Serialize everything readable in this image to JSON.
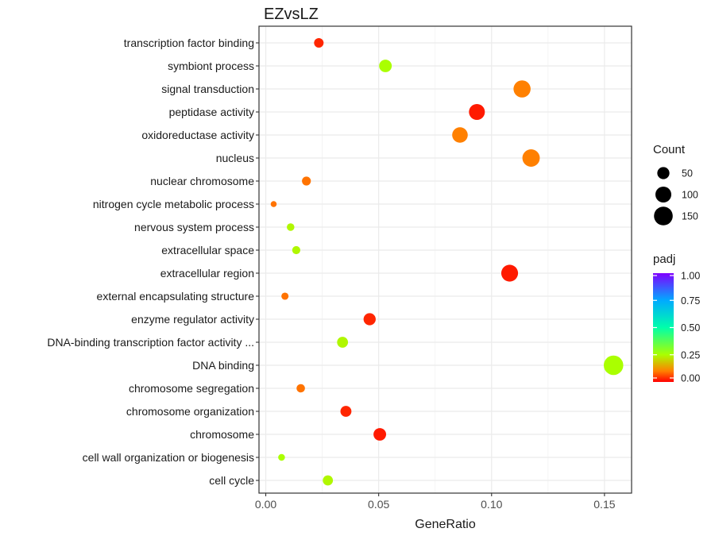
{
  "chart_data": {
    "type": "scatter",
    "title": "EZvsLZ",
    "xlabel": "GeneRatio",
    "ylabel": "",
    "xlim": [
      -0.003,
      0.162
    ],
    "xticks": [
      0,
      0.05,
      0.1,
      0.15
    ],
    "xtick_labels": [
      "0.00",
      "0.05",
      "0.10",
      "0.15"
    ],
    "grid": true,
    "legend_placement": "right",
    "categories": [
      "transcription factor binding",
      "symbiont process",
      "signal transduction",
      "peptidase activity",
      "oxidoreductase activity",
      "nucleus",
      "nuclear chromosome",
      "nitrogen cycle metabolic process",
      "nervous system process",
      "extracellular space",
      "extracellular region",
      "external encapsulating structure",
      "enzyme regulator activity",
      "DNA-binding transcription factor activity ...",
      "DNA binding",
      "chromosome segregation",
      "chromosome organization",
      "chromosome",
      "cell wall organization or biogenesis",
      "cell cycle"
    ],
    "points": [
      {
        "term": "transcription factor binding",
        "gene_ratio": 0.0235,
        "count": 25,
        "padj": 0.03
      },
      {
        "term": "symbiont process",
        "gene_ratio": 0.053,
        "count": 55,
        "padj": 0.25
      },
      {
        "term": "signal transduction",
        "gene_ratio": 0.1135,
        "count": 120,
        "padj": 0.1
      },
      {
        "term": "peptidase activity",
        "gene_ratio": 0.0935,
        "count": 100,
        "padj": 0.02
      },
      {
        "term": "oxidoreductase activity",
        "gene_ratio": 0.086,
        "count": 95,
        "padj": 0.1
      },
      {
        "term": "nucleus",
        "gene_ratio": 0.1175,
        "count": 125,
        "padj": 0.1
      },
      {
        "term": "nuclear chromosome",
        "gene_ratio": 0.018,
        "count": 20,
        "padj": 0.09
      },
      {
        "term": "nitrogen cycle metabolic process",
        "gene_ratio": 0.0035,
        "count": 5,
        "padj": 0.09
      },
      {
        "term": "nervous system process",
        "gene_ratio": 0.011,
        "count": 12,
        "padj": 0.24
      },
      {
        "term": "extracellular space",
        "gene_ratio": 0.0135,
        "count": 15,
        "padj": 0.24
      },
      {
        "term": "extracellular region",
        "gene_ratio": 0.108,
        "count": 115,
        "padj": 0.02
      },
      {
        "term": "external encapsulating structure",
        "gene_ratio": 0.0085,
        "count": 10,
        "padj": 0.09
      },
      {
        "term": "enzyme regulator activity",
        "gene_ratio": 0.046,
        "count": 50,
        "padj": 0.03
      },
      {
        "term": "DNA-binding transcription factor activity ...",
        "gene_ratio": 0.034,
        "count": 37,
        "padj": 0.24
      },
      {
        "term": "DNA binding",
        "gene_ratio": 0.154,
        "count": 165,
        "padj": 0.25
      },
      {
        "term": "chromosome segregation",
        "gene_ratio": 0.0155,
        "count": 17,
        "padj": 0.09
      },
      {
        "term": "chromosome organization",
        "gene_ratio": 0.0355,
        "count": 38,
        "padj": 0.03
      },
      {
        "term": "chromosome",
        "gene_ratio": 0.0505,
        "count": 55,
        "padj": 0.02
      },
      {
        "term": "cell wall organization or biogenesis",
        "gene_ratio": 0.007,
        "count": 8,
        "padj": 0.25
      },
      {
        "term": "cell cycle",
        "gene_ratio": 0.0275,
        "count": 30,
        "padj": 0.24
      }
    ],
    "legend_size": {
      "title": "Count",
      "values": [
        50,
        100,
        150
      ],
      "labels": [
        "50",
        "100",
        "150"
      ]
    },
    "legend_color": {
      "title": "padj",
      "range": [
        0,
        1
      ],
      "ticks": [
        0,
        0.25,
        0.5,
        0.75,
        1.0
      ],
      "labels": [
        "0.00",
        "0.25",
        "0.50",
        "0.75",
        "1.00"
      ],
      "colors": [
        "#ff0000",
        "#ff8000",
        "#aaff00",
        "#00ffaa",
        "#00aaff",
        "#8000ff"
      ]
    }
  }
}
